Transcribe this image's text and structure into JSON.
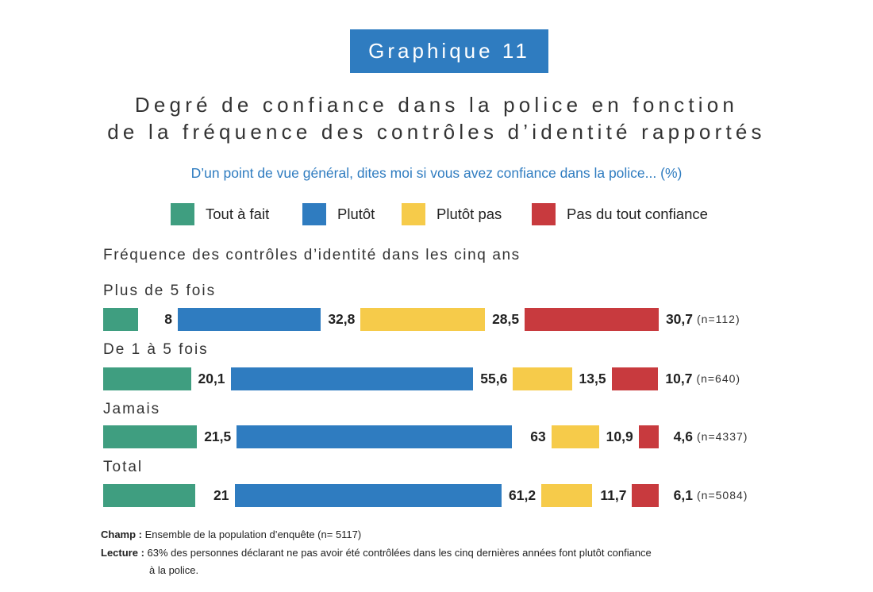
{
  "header": {
    "badge": "Graphique 11",
    "title_line1": "Degré de confiance dans la police en fonction",
    "title_line2": "de la fréquence des contrôles d’identité rapportés",
    "question": "D’un point de vue général, dites moi si vous avez confiance dans la police... (%)"
  },
  "chart_data": {
    "type": "bar",
    "orientation": "horizontal-stacked",
    "axis_title": "Fréquence des contrôles d’identité dans les cinq ans",
    "categories": [
      "Plus de 5 fois",
      "De 1 à 5 fois",
      "Jamais",
      "Total"
    ],
    "sample_sizes": [
      "(n=112)",
      "(n=640)",
      "(n=4337)",
      "(n=5084)"
    ],
    "series": [
      {
        "name": "Tout à fait",
        "color": "#3f9e80",
        "values": [
          8,
          20.1,
          21.5,
          21
        ]
      },
      {
        "name": "Plutôt",
        "color": "#2f7cc0",
        "values": [
          32.8,
          55.6,
          63,
          61.2
        ]
      },
      {
        "name": "Plutôt pas",
        "color": "#f6cb4a",
        "values": [
          28.5,
          13.5,
          10.9,
          11.7
        ]
      },
      {
        "name": "Pas du tout confiance",
        "color": "#c83a3e",
        "values": [
          30.7,
          10.7,
          4.6,
          6.1
        ]
      }
    ],
    "value_labels": [
      [
        "8",
        "32,8",
        "28,5",
        "30,7"
      ],
      [
        "20,1",
        "55,6",
        "13,5",
        "10,7"
      ],
      [
        "21,5",
        "63",
        "10,9",
        "4,6"
      ],
      [
        "21",
        "61,2",
        "11,7",
        "6,1"
      ]
    ],
    "legend_position": "top",
    "grid": false
  },
  "notes": {
    "champ_label": "Champ :",
    "champ_text": "Ensemble de la population d’enquête (n= 5117)",
    "lecture_label": "Lecture :",
    "lecture_line1": "63% des personnes déclarant ne pas avoir été contrôlées dans les cinq dernières années font plutôt confiance",
    "lecture_line2": "à la police."
  }
}
